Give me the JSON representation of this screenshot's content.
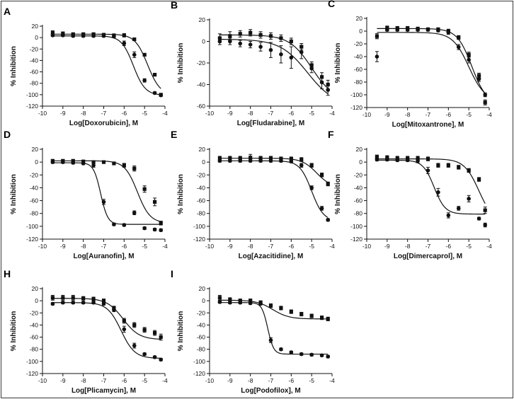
{
  "figure": {
    "frame_color": "#3a3a3a",
    "data_color": "#111111"
  },
  "chart_data": [
    {
      "panel": "A",
      "type": "scatter",
      "xlabel": "Log[Doxorubicin], M",
      "ylabel": "% Inhibition",
      "xlim": [
        -10,
        -4
      ],
      "ylim": [
        -120,
        20
      ],
      "xticks": [
        -10,
        -9,
        -8,
        -7,
        -6,
        -5,
        -4
      ],
      "yticks": [
        -120,
        -100,
        -80,
        -60,
        -40,
        -20,
        0,
        20
      ],
      "series": [
        {
          "name": "square",
          "marker": "square",
          "x": [
            -9.5,
            -9,
            -8.5,
            -8,
            -7.5,
            -7,
            -6.5,
            -6,
            -5.5,
            -5,
            -4.5,
            -4.2
          ],
          "y": [
            8,
            7,
            6,
            6,
            6,
            5,
            4,
            4,
            -3,
            -30,
            -65,
            -100
          ],
          "err": [
            4,
            3,
            2,
            2,
            2,
            2,
            2,
            3,
            2,
            2,
            2,
            2
          ],
          "fit": {
            "bottom": -101,
            "top": 6,
            "logIC50": -4.85,
            "hill": 1.4
          }
        },
        {
          "name": "circle",
          "marker": "circle",
          "x": [
            -9.5,
            -9,
            -8.5,
            -8,
            -7.5,
            -7,
            -6.5,
            -6,
            -5.5,
            -5,
            -4.5,
            -4.2
          ],
          "y": [
            4,
            4,
            3,
            3,
            3,
            3,
            2,
            -10,
            -30,
            -75,
            -97,
            -101
          ],
          "err": [
            2,
            2,
            2,
            2,
            2,
            2,
            2,
            4,
            5,
            3,
            2,
            2
          ],
          "fit": {
            "bottom": -101,
            "top": 3,
            "logIC50": -5.55,
            "hill": 1.5
          }
        }
      ]
    },
    {
      "panel": "B",
      "type": "scatter",
      "xlabel": "Log[Fludarabine], M",
      "ylabel": "% Inhibition",
      "xlim": [
        -10,
        -4
      ],
      "ylim": [
        -60,
        20
      ],
      "xticks": [
        -10,
        -9,
        -8,
        -7,
        -6,
        -5,
        -4
      ],
      "yticks": [
        -60,
        -40,
        -20,
        0,
        20
      ],
      "series": [
        {
          "name": "square",
          "marker": "square",
          "x": [
            -9.5,
            -9,
            -8.5,
            -8,
            -7.5,
            -7,
            -6.5,
            -6,
            -5.5,
            -5,
            -4.5,
            -4.2
          ],
          "y": [
            3,
            5,
            7,
            8,
            6,
            5,
            3,
            0,
            -5,
            -22,
            -33,
            -40
          ],
          "err": [
            4,
            4,
            3,
            3,
            3,
            3,
            3,
            3,
            3,
            3,
            4,
            4
          ],
          "fit": {
            "bottom": -55,
            "top": 6,
            "logIC50": -5.0,
            "hill": 0.8
          }
        },
        {
          "name": "circle",
          "marker": "circle",
          "x": [
            -9.5,
            -9,
            -8.5,
            -8,
            -7.5,
            -7,
            -6.5,
            -6,
            -5.5,
            -5,
            -4.5,
            -4.2
          ],
          "y": [
            0,
            0,
            -2,
            -3,
            -5,
            -8,
            -12,
            -15,
            -10,
            -25,
            -38,
            -45
          ],
          "err": [
            3,
            3,
            3,
            3,
            4,
            7,
            8,
            10,
            6,
            4,
            6,
            5
          ],
          "fit": {
            "bottom": -60,
            "top": 2,
            "logIC50": -5.2,
            "hill": 0.65
          }
        }
      ]
    },
    {
      "panel": "C",
      "type": "scatter",
      "xlabel": "Log[Mitoxantrone], M",
      "ylabel": "% Inhibition",
      "xlim": [
        -10,
        -4
      ],
      "ylim": [
        -120,
        20
      ],
      "xticks": [
        -10,
        -9,
        -8,
        -7,
        -6,
        -5,
        -4
      ],
      "yticks": [
        -120,
        -100,
        -80,
        -60,
        -40,
        -20,
        0,
        20
      ],
      "series": [
        {
          "name": "square",
          "marker": "square",
          "x": [
            -9.5,
            -9,
            -8.5,
            -8,
            -7.5,
            -7,
            -6.5,
            -6,
            -5.5,
            -5,
            -4.5,
            -4.2
          ],
          "y": [
            -8,
            5,
            5,
            5,
            4,
            3,
            3,
            0,
            -10,
            -37,
            -70,
            -112
          ],
          "err": [
            4,
            3,
            2,
            2,
            2,
            2,
            2,
            3,
            3,
            4,
            4,
            4
          ],
          "fit": {
            "bottom": -115,
            "top": 4,
            "logIC50": -4.85,
            "hill": 1.2
          }
        },
        {
          "name": "circle",
          "marker": "circle",
          "x": [
            -9.5,
            -9,
            -8.5,
            -8,
            -7.5,
            -7,
            -6.5,
            -6,
            -5.5,
            -5,
            -4.5,
            -4.2
          ],
          "y": [
            -40,
            2,
            2,
            2,
            2,
            2,
            1,
            -2,
            -25,
            -45,
            -75,
            -100
          ],
          "err": [
            8,
            2,
            2,
            2,
            2,
            2,
            2,
            3,
            4,
            5,
            4,
            3
          ],
          "fit": {
            "bottom": -110,
            "top": -2,
            "logIC50": -5.0,
            "hill": 1.1
          }
        }
      ]
    },
    {
      "panel": "D",
      "type": "scatter",
      "xlabel": "Log[Auranofin], M",
      "ylabel": "% Inhibition",
      "xlim": [
        -10,
        -4
      ],
      "ylim": [
        -120,
        20
      ],
      "xticks": [
        -10,
        -9,
        -8,
        -7,
        -6,
        -5,
        -4
      ],
      "yticks": [
        -120,
        -100,
        -80,
        -60,
        -40,
        -20,
        0,
        20
      ],
      "series": [
        {
          "name": "square",
          "marker": "square",
          "x": [
            -9.5,
            -9,
            -8.5,
            -8,
            -7.5,
            -7,
            -6.5,
            -6,
            -5.5,
            -5,
            -4.5,
            -4.2
          ],
          "y": [
            2,
            2,
            2,
            1,
            0,
            0,
            -2,
            -5,
            -10,
            -42,
            -62,
            -95
          ],
          "err": [
            2,
            2,
            2,
            2,
            2,
            2,
            2,
            3,
            4,
            5,
            6,
            3
          ],
          "fit": {
            "bottom": -95,
            "top": 2,
            "logIC50": -5.35,
            "hill": 1.4
          }
        },
        {
          "name": "circle",
          "marker": "circle",
          "x": [
            -9.5,
            -9,
            -8.5,
            -8,
            -7.5,
            -7,
            -6.5,
            -6,
            -5.5,
            -5,
            -4.5,
            -4.2
          ],
          "y": [
            0,
            0,
            -1,
            -2,
            -5,
            -62,
            -97,
            -98,
            -79,
            -103,
            -105,
            -106
          ],
          "err": [
            2,
            2,
            2,
            2,
            3,
            4,
            2,
            2,
            3,
            2,
            2,
            2
          ],
          "fit": {
            "bottom": -97,
            "top": -1,
            "logIC50": -7.15,
            "hill": 2.5
          }
        }
      ]
    },
    {
      "panel": "E",
      "type": "scatter",
      "xlabel": "Log[Azacitidine], M",
      "ylabel": "% Inhibition",
      "xlim": [
        -10,
        -4
      ],
      "ylim": [
        -120,
        20
      ],
      "xticks": [
        -10,
        -9,
        -8,
        -7,
        -6,
        -5,
        -4
      ],
      "yticks": [
        -120,
        -100,
        -80,
        -60,
        -40,
        -20,
        0,
        20
      ],
      "series": [
        {
          "name": "square",
          "marker": "square",
          "x": [
            -9.5,
            -9,
            -8.5,
            -8,
            -7.5,
            -7,
            -6.5,
            -6,
            -5.5,
            -5,
            -4.5,
            -4.2
          ],
          "y": [
            6,
            6,
            6,
            7,
            6,
            6,
            5,
            5,
            4,
            -5,
            -20,
            -34
          ],
          "err": [
            3,
            3,
            3,
            5,
            3,
            3,
            3,
            3,
            3,
            3,
            3,
            3
          ],
          "fit": {
            "bottom": -40,
            "top": 6,
            "logIC50": -4.75,
            "hill": 1.2
          }
        },
        {
          "name": "circle",
          "marker": "circle",
          "x": [
            -9.5,
            -9,
            -8.5,
            -8,
            -7.5,
            -7,
            -6.5,
            -6,
            -5.5,
            -5,
            -4.5,
            -4.2
          ],
          "y": [
            2,
            2,
            2,
            2,
            2,
            2,
            2,
            1,
            -5,
            -40,
            -72,
            -90
          ],
          "err": [
            2,
            2,
            2,
            2,
            2,
            2,
            2,
            2,
            3,
            3,
            3,
            2
          ],
          "fit": {
            "bottom": -92,
            "top": 2,
            "logIC50": -5.0,
            "hill": 1.5
          }
        }
      ]
    },
    {
      "panel": "F",
      "type": "scatter",
      "xlabel": "Log[Dimercaprol], M",
      "ylabel": "% Inhibition",
      "xlim": [
        -10,
        -4
      ],
      "ylim": [
        -120,
        20
      ],
      "xticks": [
        -10,
        -9,
        -8,
        -7,
        -6,
        -5,
        -4
      ],
      "yticks": [
        -120,
        -100,
        -80,
        -60,
        -40,
        -20,
        0,
        20
      ],
      "series": [
        {
          "name": "square",
          "marker": "square",
          "x": [
            -9.5,
            -9,
            -8.5,
            -8,
            -7.5,
            -7,
            -6.5,
            -6,
            -5.5,
            -5,
            -4.5,
            -4.2
          ],
          "y": [
            8,
            7,
            6,
            6,
            6,
            5,
            -5,
            -5,
            -8,
            -13,
            -27,
            -75
          ],
          "err": [
            3,
            3,
            3,
            3,
            3,
            3,
            3,
            3,
            3,
            3,
            3,
            5
          ],
          "fit": {
            "bottom": -95,
            "top": 5,
            "logIC50": -4.5,
            "hill": 1.2
          }
        },
        {
          "name": "circle",
          "marker": "circle",
          "x": [
            -9.5,
            -9,
            -8.5,
            -8,
            -7.5,
            -7,
            -6.5,
            -6,
            -5.5,
            -5,
            -4.5,
            -4.2
          ],
          "y": [
            4,
            4,
            3,
            3,
            2,
            -13,
            -47,
            -83,
            -72,
            -57,
            -88,
            -98
          ],
          "err": [
            2,
            2,
            2,
            2,
            3,
            5,
            6,
            4,
            3,
            5,
            2,
            3
          ],
          "fit": {
            "bottom": -81,
            "top": 3,
            "logIC50": -6.7,
            "hill": 1.6
          }
        }
      ]
    },
    {
      "panel": "H",
      "type": "scatter",
      "xlabel": "Log[Plicamycin], M",
      "ylabel": "% Inhibition",
      "xlim": [
        -10,
        -4
      ],
      "ylim": [
        -120,
        20
      ],
      "xticks": [
        -10,
        -9,
        -8,
        -7,
        -6,
        -5,
        -4
      ],
      "yticks": [
        -120,
        -100,
        -80,
        -60,
        -40,
        -20,
        0,
        20
      ],
      "series": [
        {
          "name": "square",
          "marker": "square",
          "x": [
            -9.5,
            -9,
            -8.5,
            -8,
            -7.5,
            -7,
            -6.5,
            -6,
            -5.5,
            -5,
            -4.5,
            -4.2
          ],
          "y": [
            5,
            5,
            5,
            4,
            3,
            0,
            -12,
            -33,
            -40,
            -48,
            -53,
            -60
          ],
          "err": [
            4,
            4,
            4,
            3,
            3,
            3,
            3,
            4,
            4,
            4,
            4,
            5
          ],
          "fit": {
            "bottom": -64,
            "top": 4,
            "logIC50": -6.05,
            "hill": 1.1
          }
        },
        {
          "name": "circle",
          "marker": "circle",
          "x": [
            -9.5,
            -9,
            -8.5,
            -8,
            -7.5,
            -7,
            -6.5,
            -6,
            -5.5,
            -5,
            -4.5,
            -4.2
          ],
          "y": [
            -5,
            -3,
            -3,
            -3,
            -3,
            -5,
            -15,
            -47,
            -74,
            -88,
            -93,
            -97
          ],
          "err": [
            2,
            2,
            2,
            2,
            2,
            2,
            3,
            5,
            4,
            2,
            2,
            2
          ],
          "fit": {
            "bottom": -95,
            "top": -3,
            "logIC50": -6.15,
            "hill": 1.3
          }
        }
      ]
    },
    {
      "panel": "I",
      "type": "scatter",
      "xlabel": "Log[Podofilox], M",
      "ylabel": "% Inhibition",
      "xlim": [
        -10,
        -4
      ],
      "ylim": [
        -120,
        20
      ],
      "xticks": [
        -10,
        -9,
        -8,
        -7,
        -6,
        -5,
        -4
      ],
      "yticks": [
        -120,
        -100,
        -80,
        -60,
        -40,
        -20,
        0,
        20
      ],
      "series": [
        {
          "name": "square",
          "marker": "square",
          "x": [
            -9.5,
            -9,
            -8.5,
            -8,
            -7.5,
            -7,
            -6.5,
            -6,
            -5.5,
            -5,
            -4.5,
            -4.2
          ],
          "y": [
            5,
            2,
            0,
            0,
            -3,
            -8,
            -12,
            -18,
            -22,
            -25,
            -28,
            -30
          ],
          "err": [
            4,
            3,
            3,
            3,
            3,
            3,
            3,
            3,
            3,
            3,
            3,
            3
          ],
          "fit": {
            "bottom": -30,
            "top": 1,
            "logIC50": -6.9,
            "hill": 1.1
          }
        },
        {
          "name": "circle",
          "marker": "circle",
          "x": [
            -9.5,
            -9,
            -8.5,
            -8,
            -7.5,
            -7,
            -6.5,
            -6,
            -5.5,
            -5,
            -4.5,
            -4.2
          ],
          "y": [
            -2,
            -3,
            -3,
            -4,
            -5,
            -65,
            -80,
            -85,
            -88,
            -89,
            -90,
            -92
          ],
          "err": [
            2,
            2,
            2,
            2,
            2,
            4,
            2,
            2,
            2,
            2,
            2,
            2
          ],
          "fit": {
            "bottom": -88,
            "top": -3,
            "logIC50": -7.15,
            "hill": 3.0
          }
        }
      ]
    }
  ]
}
